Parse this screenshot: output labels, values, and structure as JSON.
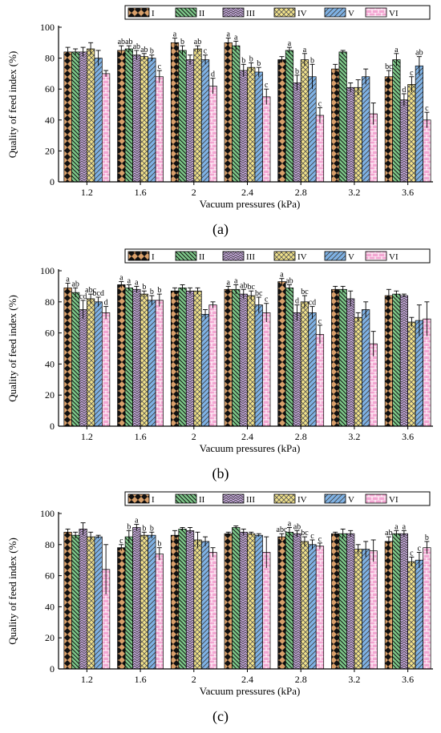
{
  "series_names": [
    "I",
    "II",
    "III",
    "IV",
    "V",
    "VI"
  ],
  "colors": [
    "#d9a06a",
    "#7ec98a",
    "#c8a8e0",
    "#f3e38a",
    "#7fb2e5",
    "#f3a6d2"
  ],
  "chart_data": [
    {
      "type": "bar",
      "panel": "(a)",
      "xlabel": "Vacuum pressures (kPa)",
      "ylabel": "Quality of feed index (%)",
      "ylim": [
        0,
        100
      ],
      "yticks": [
        "0",
        "20",
        "40",
        "60",
        "80",
        "100"
      ],
      "categories": [
        "1.2",
        "1.6",
        "2",
        "2.4",
        "2.8",
        "3.2",
        "3.6"
      ],
      "series": [
        {
          "name": "I",
          "values": [
            84,
            85,
            90,
            90,
            79,
            73,
            68
          ],
          "errors": [
            3,
            3,
            3,
            3,
            2,
            3,
            4
          ],
          "labels": [
            "",
            "ab",
            "a",
            "a",
            "",
            "",
            "bc"
          ]
        },
        {
          "name": "II",
          "values": [
            84,
            86,
            85,
            88,
            85,
            84,
            79
          ],
          "errors": [
            2,
            2,
            3,
            3,
            2,
            1,
            4
          ],
          "labels": [
            "",
            "ab",
            "b",
            "a",
            "a",
            "",
            "a"
          ]
        },
        {
          "name": "III",
          "values": [
            84,
            82,
            79,
            72,
            64,
            61,
            53
          ],
          "errors": [
            3,
            3,
            3,
            4,
            5,
            3,
            4
          ],
          "labels": [
            "",
            "ab",
            "",
            "b",
            "b",
            "",
            "d"
          ]
        },
        {
          "name": "IV",
          "values": [
            86,
            81,
            86,
            74,
            79,
            61,
            63
          ],
          "errors": [
            4,
            2,
            2,
            3,
            4,
            5,
            5
          ],
          "labels": [
            "",
            "ab",
            "ab",
            "b",
            "a",
            "",
            "c"
          ]
        },
        {
          "name": "V",
          "values": [
            80,
            80,
            79,
            71,
            68,
            68,
            75
          ],
          "errors": [
            5,
            2,
            3,
            3,
            8,
            5,
            6
          ],
          "labels": [
            "",
            "b",
            "c",
            "b",
            "b",
            "",
            "ab"
          ]
        },
        {
          "name": "VI",
          "values": [
            70,
            68,
            62,
            55,
            43,
            44,
            40
          ],
          "errors": [
            2,
            4,
            5,
            5,
            5,
            7,
            5
          ],
          "labels": [
            "",
            "c",
            "d",
            "c",
            "c",
            "",
            "c"
          ]
        }
      ]
    },
    {
      "type": "bar",
      "panel": "(b)",
      "xlabel": "Vacuum pressures (kPa)",
      "ylabel": "Quality of feed index (%)",
      "ylim": [
        0,
        100
      ],
      "yticks": [
        "0",
        "20",
        "40",
        "60",
        "80",
        "100"
      ],
      "categories": [
        "1.2",
        "1.6",
        "2",
        "2.4",
        "2.8",
        "3.2",
        "3.6"
      ],
      "series": [
        {
          "name": "I",
          "values": [
            89,
            91,
            87,
            88,
            93,
            88,
            84
          ],
          "errors": [
            3,
            2,
            2,
            2,
            2,
            2,
            4
          ],
          "labels": [
            "a",
            "a",
            "",
            "a",
            "a",
            "",
            ""
          ]
        },
        {
          "name": "II",
          "values": [
            86,
            89,
            89,
            88,
            89,
            88,
            85
          ],
          "errors": [
            3,
            2,
            2,
            3,
            2,
            2,
            2
          ],
          "labels": [
            "ab",
            "a",
            "",
            "a",
            "ab",
            "",
            ""
          ]
        },
        {
          "name": "III",
          "values": [
            75,
            88,
            87,
            85,
            73,
            82,
            84
          ],
          "errors": [
            6,
            2,
            2,
            3,
            5,
            5,
            1
          ],
          "labels": [
            "cd",
            "a",
            "",
            "ab",
            "d",
            "",
            ""
          ]
        },
        {
          "name": "IV",
          "values": [
            82,
            85,
            87,
            84,
            80,
            70,
            67
          ],
          "errors": [
            3,
            2,
            2,
            3,
            4,
            3,
            3
          ],
          "labels": [
            "abc",
            "b",
            "",
            "bc",
            "bc",
            "",
            ""
          ]
        },
        {
          "name": "V",
          "values": [
            80,
            81,
            72,
            78,
            73,
            75,
            68
          ],
          "errors": [
            3,
            3,
            3,
            5,
            4,
            5,
            10
          ],
          "labels": [
            "bcd",
            "b",
            "",
            "bc",
            "cd",
            "",
            ""
          ]
        },
        {
          "name": "VI",
          "values": [
            73,
            81,
            78,
            73,
            59,
            53,
            69
          ],
          "errors": [
            4,
            4,
            2,
            6,
            6,
            8,
            11
          ],
          "labels": [
            "d",
            "b",
            "",
            "c",
            "c",
            "",
            ""
          ]
        }
      ]
    },
    {
      "type": "bar",
      "panel": "(c)",
      "xlabel": "Vacuum pressures (kPa)",
      "ylabel": "Quality of feed index (%)",
      "ylim": [
        0,
        100
      ],
      "yticks": [
        "0",
        "20",
        "40",
        "60",
        "80",
        "100"
      ],
      "categories": [
        "1.2",
        "1.6",
        "2",
        "2.4",
        "2.8",
        "3.2",
        "3.6"
      ],
      "series": [
        {
          "name": "I",
          "values": [
            88,
            78,
            86,
            87,
            85,
            87,
            82
          ],
          "errors": [
            2,
            2,
            3,
            1,
            2,
            1,
            3
          ],
          "labels": [
            "",
            "c",
            "",
            "",
            "abc",
            "",
            "ab"
          ]
        },
        {
          "name": "II",
          "values": [
            86,
            85,
            90,
            91,
            88,
            87,
            87
          ],
          "errors": [
            2,
            4,
            1,
            1,
            3,
            3,
            2
          ],
          "labels": [
            "",
            "b",
            "",
            "",
            "a",
            "",
            "a"
          ]
        },
        {
          "name": "III",
          "values": [
            90,
            91,
            89,
            88,
            87,
            87,
            87
          ],
          "errors": [
            4,
            2,
            2,
            2,
            2,
            2,
            2
          ],
          "labels": [
            "",
            "a",
            "",
            "",
            "ab",
            "",
            "a"
          ]
        },
        {
          "name": "IV",
          "values": [
            85,
            86,
            83,
            87,
            82,
            77,
            69
          ],
          "errors": [
            3,
            2,
            5,
            1,
            3,
            3,
            3
          ],
          "labels": [
            "",
            "b",
            "",
            "",
            "bc",
            "",
            "c"
          ]
        },
        {
          "name": "V",
          "values": [
            85,
            86,
            82,
            86,
            80,
            77,
            70
          ],
          "errors": [
            1,
            2,
            3,
            1,
            3,
            5,
            5
          ],
          "labels": [
            "",
            "b",
            "",
            "",
            "c",
            "",
            "c"
          ]
        },
        {
          "name": "VI",
          "values": [
            64,
            74,
            75,
            75,
            79,
            76,
            78
          ],
          "errors": [
            16,
            4,
            3,
            10,
            2,
            7,
            4
          ],
          "labels": [
            "",
            "b",
            "",
            "",
            "c",
            "",
            "b"
          ]
        }
      ]
    }
  ]
}
